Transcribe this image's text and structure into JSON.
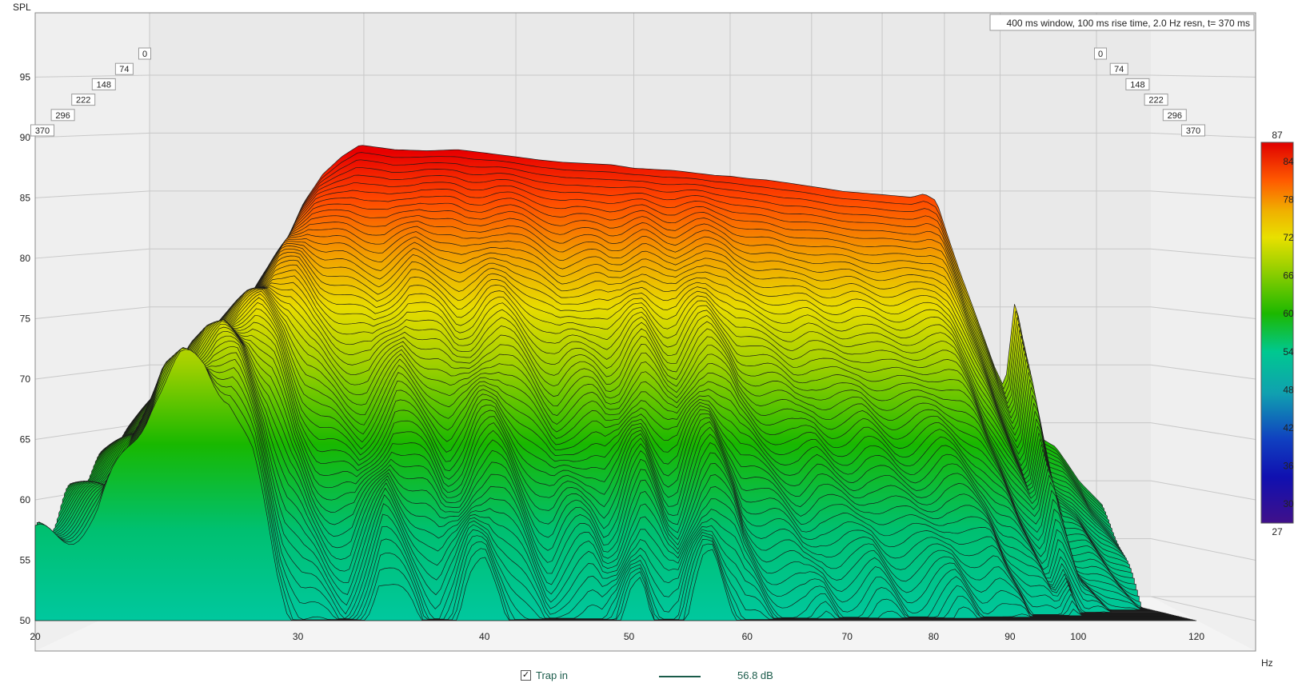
{
  "chart_data": {
    "type": "area",
    "ylabel": "SPL",
    "xunit": "Hz",
    "annotation": "400 ms window, 100 ms rise time,  2.0 Hz resn, t= 370 ms",
    "x_ticks": [
      "20",
      "30",
      "40",
      "50",
      "60",
      "70",
      "80",
      "90",
      "100",
      "120"
    ],
    "y_ticks": [
      "50",
      "55",
      "60",
      "65",
      "70",
      "75",
      "80",
      "85",
      "90",
      "95"
    ],
    "xlim": [
      20,
      120
    ],
    "ylim": [
      50,
      99
    ],
    "time_labels": [
      "0",
      "74",
      "148",
      "222",
      "296",
      "370"
    ],
    "colorbar": {
      "min_label": "27",
      "max_label": "87",
      "ticks": [
        "84",
        "78",
        "72",
        "66",
        "60",
        "54",
        "48",
        "42",
        "36",
        "30"
      ],
      "colors": [
        "#e00000",
        "#ff5a00",
        "#f0b000",
        "#e8e000",
        "#9ad000",
        "#1cb800",
        "#00c890",
        "#10a0b0",
        "#1040c0",
        "#1010b0",
        "#40108a"
      ]
    },
    "slice_count": 60,
    "front_slice_db": [
      [
        20,
        56.5
      ],
      [
        22,
        58.5
      ],
      [
        24,
        69
      ],
      [
        25,
        71
      ],
      [
        26,
        71.3
      ],
      [
        27,
        69
      ],
      [
        28,
        63
      ],
      [
        29,
        54
      ],
      [
        30,
        49
      ],
      [
        31,
        47
      ],
      [
        32,
        46
      ],
      [
        33,
        50
      ],
      [
        34,
        54
      ],
      [
        35,
        52
      ],
      [
        36,
        50
      ],
      [
        37,
        47
      ],
      [
        38,
        49
      ],
      [
        39,
        53
      ],
      [
        40,
        54
      ],
      [
        41,
        52
      ],
      [
        42,
        49
      ],
      [
        43,
        46
      ],
      [
        44,
        44
      ],
      [
        45,
        46
      ],
      [
        46,
        47
      ],
      [
        47,
        47
      ],
      [
        48,
        45
      ],
      [
        49,
        47
      ],
      [
        50,
        51
      ],
      [
        51,
        53
      ],
      [
        52,
        50
      ],
      [
        53,
        47
      ],
      [
        54,
        47
      ],
      [
        55,
        51
      ],
      [
        56,
        54
      ],
      [
        57,
        55
      ],
      [
        58,
        53
      ],
      [
        59,
        51
      ],
      [
        60,
        48
      ],
      [
        62,
        46
      ],
      [
        64,
        45
      ],
      [
        66,
        44
      ],
      [
        68,
        45
      ],
      [
        70,
        44
      ],
      [
        72,
        44
      ],
      [
        74,
        45
      ],
      [
        76,
        44
      ],
      [
        78,
        43
      ],
      [
        80,
        43
      ],
      [
        82,
        44
      ],
      [
        84,
        45
      ],
      [
        86,
        44
      ],
      [
        88,
        43
      ],
      [
        90,
        44
      ],
      [
        92,
        43
      ],
      [
        94,
        43
      ],
      [
        96,
        42
      ],
      [
        98,
        42
      ],
      [
        100,
        41
      ],
      [
        105,
        40
      ],
      [
        110,
        40
      ],
      [
        115,
        39
      ],
      [
        120,
        39
      ]
    ],
    "peak_slice_db": [
      [
        20,
        66
      ],
      [
        22,
        72
      ],
      [
        24,
        75
      ],
      [
        25,
        77
      ],
      [
        26,
        80
      ],
      [
        27,
        84
      ],
      [
        28,
        86.5
      ],
      [
        29,
        88
      ],
      [
        30,
        89
      ],
      [
        32,
        88.6
      ],
      [
        34,
        88.5
      ],
      [
        36,
        88.6
      ],
      [
        38,
        88.3
      ],
      [
        40,
        88.0
      ],
      [
        42,
        87.7
      ],
      [
        44,
        87.5
      ],
      [
        46,
        87.4
      ],
      [
        48,
        87.3
      ],
      [
        50,
        87.0
      ],
      [
        52,
        86.9
      ],
      [
        54,
        86.8
      ],
      [
        56,
        86.6
      ],
      [
        58,
        86.4
      ],
      [
        60,
        86.3
      ],
      [
        62,
        86.1
      ],
      [
        64,
        86.0
      ],
      [
        66,
        85.8
      ],
      [
        68,
        85.6
      ],
      [
        70,
        85.4
      ],
      [
        72,
        85.2
      ],
      [
        74,
        85.0
      ],
      [
        76,
        84.9
      ],
      [
        78,
        84.8
      ],
      [
        80,
        84.7
      ],
      [
        82,
        84.6
      ],
      [
        84,
        84.5
      ],
      [
        86,
        84.8
      ],
      [
        88,
        84.2
      ],
      [
        90,
        81
      ],
      [
        92,
        78
      ],
      [
        95,
        74
      ],
      [
        98,
        70
      ],
      [
        100,
        68
      ],
      [
        102,
        76
      ],
      [
        104,
        70
      ],
      [
        106,
        64
      ],
      [
        110,
        63
      ],
      [
        115,
        60
      ],
      [
        120,
        58
      ]
    ]
  },
  "legend": {
    "check_mark": "✓",
    "label": "Trap in",
    "value": "56.8 dB",
    "line_color": "#1a5b4a"
  }
}
